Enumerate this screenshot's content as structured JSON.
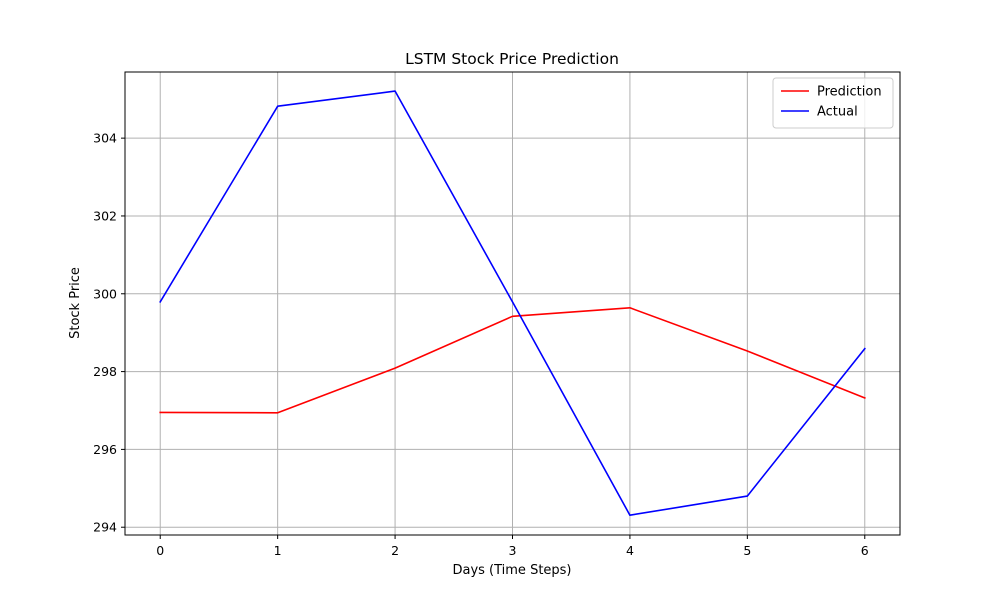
{
  "chart_data": {
    "type": "line",
    "title": "LSTM Stock Price Prediction",
    "xlabel": "Days (Time Steps)",
    "ylabel": "Stock Price",
    "x": [
      0,
      1,
      2,
      3,
      4,
      5,
      6
    ],
    "xticks": [
      0,
      1,
      2,
      3,
      4,
      5,
      6
    ],
    "yticks": [
      294,
      296,
      298,
      300,
      302,
      304
    ],
    "xlim": [
      -0.3,
      6.3
    ],
    "ylim": [
      293.8,
      305.7
    ],
    "grid": true,
    "legend_position": "top-right",
    "series": [
      {
        "name": "Prediction",
        "color": "#ff0000",
        "values": [
          296.95,
          296.94,
          298.09,
          299.42,
          299.64,
          298.53,
          297.32
        ]
      },
      {
        "name": "Actual",
        "color": "#0000ff",
        "values": [
          299.79,
          304.82,
          305.21,
          299.79,
          294.31,
          294.8,
          298.59
        ]
      }
    ]
  }
}
